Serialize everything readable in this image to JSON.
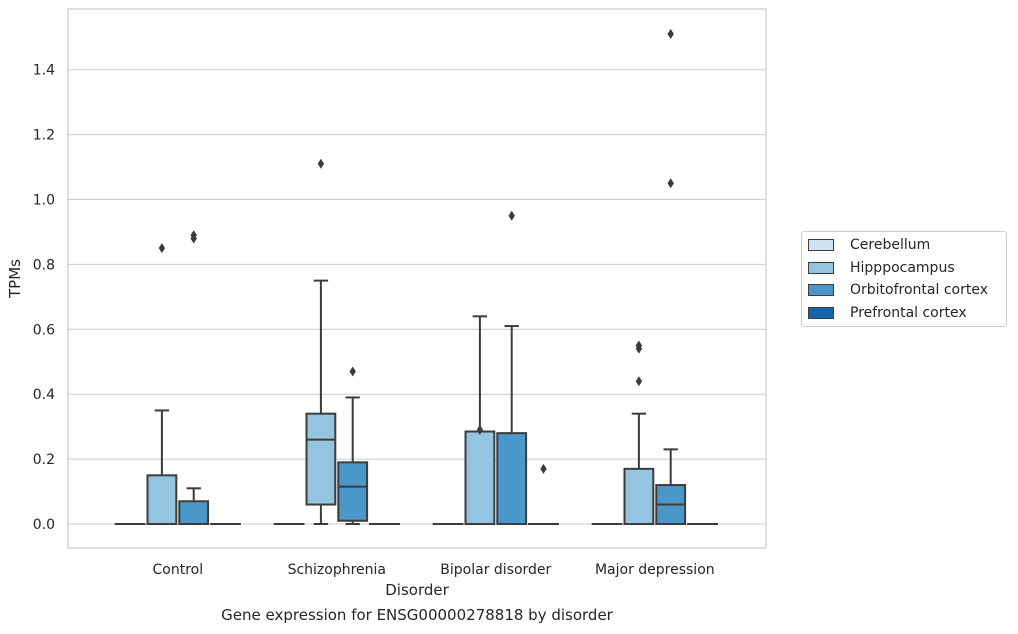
{
  "chart_data": {
    "type": "box",
    "xlabel": "Disorder",
    "ylabel": "TPMs",
    "ylim": [
      -0.075,
      1.58
    ],
    "yticks": [
      0.0,
      0.2,
      0.4,
      0.6,
      0.8,
      1.0,
      1.2,
      1.4
    ],
    "ytick_labels": [
      "0.0",
      "0.2",
      "0.4",
      "0.6",
      "0.8",
      "1.0",
      "1.2",
      "1.4"
    ],
    "grid": "horizontal",
    "legend_position": "right",
    "categories": [
      "Control",
      "Schizophrenia",
      "Bipolar disorder",
      "Major depression"
    ],
    "series": [
      {
        "name": "Cerebellum",
        "color": "#d0e1f2",
        "boxes": [
          {
            "q1": 0,
            "median": 0,
            "q3": 0,
            "whisker_low": 0,
            "whisker_high": 0,
            "outliers": []
          },
          {
            "q1": 0,
            "median": 0,
            "q3": 0,
            "whisker_low": 0,
            "whisker_high": 0,
            "outliers": []
          },
          {
            "q1": 0,
            "median": 0,
            "q3": 0,
            "whisker_low": 0,
            "whisker_high": 0,
            "outliers": []
          },
          {
            "q1": 0,
            "median": 0,
            "q3": 0,
            "whisker_low": 0,
            "whisker_high": 0,
            "outliers": []
          }
        ]
      },
      {
        "name": "Hipppocampus",
        "color": "#94c4df",
        "boxes": [
          {
            "q1": 0,
            "median": 0,
            "q3": 0.15,
            "whisker_low": 0,
            "whisker_high": 0.35,
            "outliers": [
              0.85
            ]
          },
          {
            "q1": 0.06,
            "median": 0.26,
            "q3": 0.34,
            "whisker_low": 0,
            "whisker_high": 0.75,
            "outliers": [
              1.11
            ]
          },
          {
            "q1": 0,
            "median": 0,
            "q3": 0.285,
            "whisker_low": 0,
            "whisker_high": 0.64,
            "outliers": [
              0.29
            ]
          },
          {
            "q1": 0,
            "median": 0,
            "q3": 0.17,
            "whisker_low": 0,
            "whisker_high": 0.34,
            "outliers": [
              0.44,
              0.54,
              0.55
            ]
          }
        ]
      },
      {
        "name": "Orbitofrontal cortex",
        "color": "#4a98c9",
        "boxes": [
          {
            "q1": 0,
            "median": 0,
            "q3": 0.07,
            "whisker_low": 0,
            "whisker_high": 0.11,
            "outliers": [
              0.88,
              0.89
            ]
          },
          {
            "q1": 0.01,
            "median": 0.115,
            "q3": 0.19,
            "whisker_low": 0,
            "whisker_high": 0.39,
            "outliers": [
              0.47
            ]
          },
          {
            "q1": 0,
            "median": 0,
            "q3": 0.28,
            "whisker_low": 0,
            "whisker_high": 0.61,
            "outliers": [
              0.95
            ]
          },
          {
            "q1": 0,
            "median": 0.06,
            "q3": 0.12,
            "whisker_low": 0,
            "whisker_high": 0.23,
            "outliers": [
              1.05,
              1.51
            ]
          }
        ]
      },
      {
        "name": "Prefrontal cortex",
        "color": "#1764ab",
        "boxes": [
          {
            "q1": 0,
            "median": 0,
            "q3": 0,
            "whisker_low": 0,
            "whisker_high": 0,
            "outliers": []
          },
          {
            "q1": 0,
            "median": 0,
            "q3": 0,
            "whisker_low": 0,
            "whisker_high": 0,
            "outliers": []
          },
          {
            "q1": 0,
            "median": 0,
            "q3": 0,
            "whisker_low": 0,
            "whisker_high": 0,
            "outliers": [
              0.17
            ]
          },
          {
            "q1": 0,
            "median": 0,
            "q3": 0,
            "whisker_low": 0,
            "whisker_high": 0,
            "outliers": []
          }
        ]
      }
    ]
  },
  "caption": "Gene expression for ENSG00000278818 by disorder"
}
